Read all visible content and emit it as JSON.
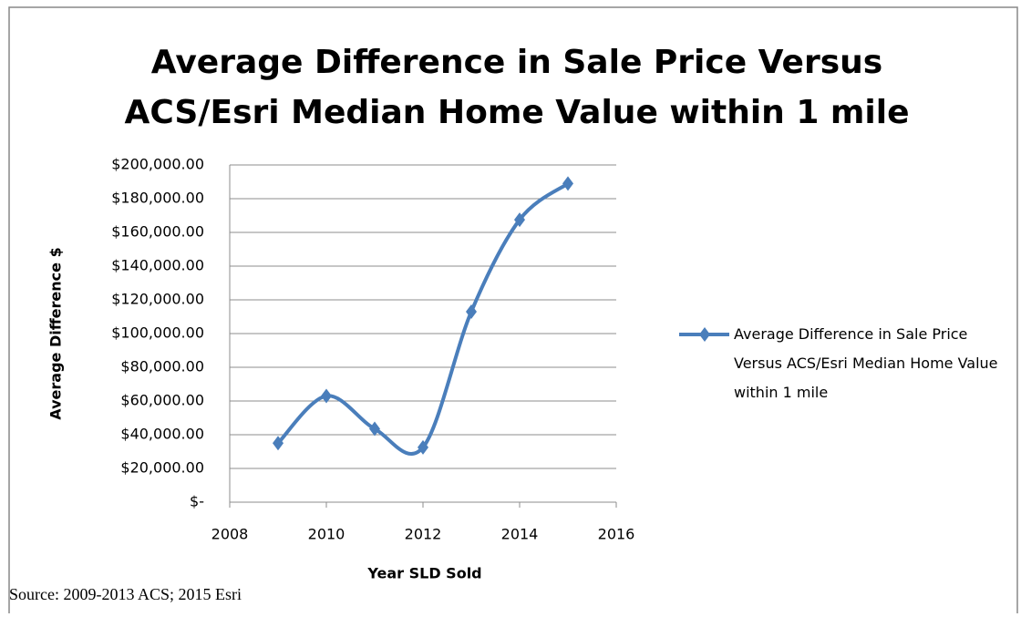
{
  "chart_data": {
    "type": "line",
    "title": "Average Difference in Sale Price Versus ACS/Esri Median Home Value within 1 mile",
    "xlabel": "Year SLD Sold",
    "ylabel": "Average Difference $",
    "source": "Source: 2009-2013 ACS; 2015 Esri",
    "x": [
      2009,
      2010,
      2011,
      2012,
      2013,
      2014,
      2015
    ],
    "series": [
      {
        "name": "Average Difference in Sale Price Versus ACS/Esri Median Home Value within 1 mile",
        "color": "#4a7ebb",
        "values": [
          35000,
          63000,
          43500,
          32500,
          113000,
          167500,
          189000
        ]
      }
    ],
    "xlim": [
      2008,
      2016
    ],
    "xticks": [
      2008,
      2010,
      2012,
      2014,
      2016
    ],
    "ylim": [
      0,
      200000
    ],
    "yticks": [
      {
        "value": 0,
        "label": "$-"
      },
      {
        "value": 20000,
        "label": "$20,000.00"
      },
      {
        "value": 40000,
        "label": "$40,000.00"
      },
      {
        "value": 60000,
        "label": "$60,000.00"
      },
      {
        "value": 80000,
        "label": "$80,000.00"
      },
      {
        "value": 100000,
        "label": "$100,000.00"
      },
      {
        "value": 120000,
        "label": "$120,000.00"
      },
      {
        "value": 140000,
        "label": "$140,000.00"
      },
      {
        "value": 160000,
        "label": "$160,000.00"
      },
      {
        "value": 180000,
        "label": "$180,000.00"
      },
      {
        "value": 200000,
        "label": "$200,000.00"
      }
    ],
    "grid": true,
    "legend": "right",
    "smooth": true
  }
}
